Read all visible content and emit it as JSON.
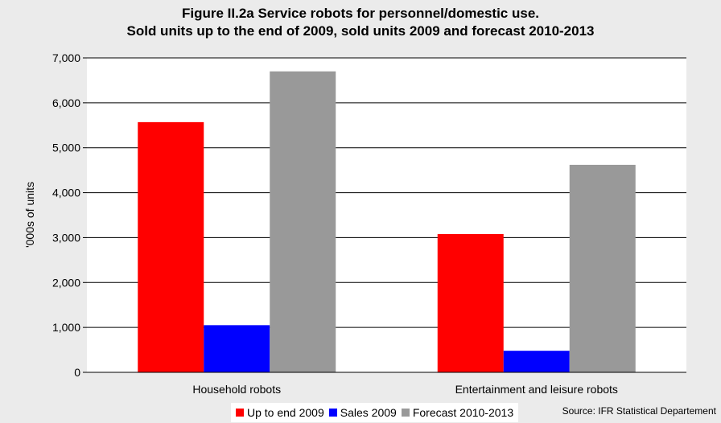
{
  "title_line1": "Figure II.2a  Service robots for personnel/domestic use.",
  "title_line2": "Sold units up to the end of 2009, sold units 2009 and forecast 2010-2013",
  "source": "Source: IFR Statistical Departement",
  "chart_data": {
    "type": "bar",
    "title": "Figure II.2a  Service robots for personnel/domestic use. Sold units up to the end of 2009, sold units 2009 and forecast 2010-2013",
    "ylabel": "'000s of units",
    "xlabel": "",
    "categories": [
      "Household robots",
      "Entertainment and leisure robots"
    ],
    "series": [
      {
        "name": "Up to end 2009",
        "color": "#ff0000",
        "values": [
          5570,
          3080
        ]
      },
      {
        "name": "Sales 2009",
        "color": "#0000ff",
        "values": [
          1050,
          480
        ]
      },
      {
        "name": "Forecast 2010-2013",
        "color": "#999999",
        "values": [
          6700,
          4620
        ]
      }
    ],
    "ylim": [
      0,
      7000
    ],
    "yticks": [
      0,
      1000,
      2000,
      3000,
      4000,
      5000,
      6000,
      7000
    ],
    "ytick_labels": [
      "0",
      "1,000",
      "2,000",
      "3,000",
      "4,000",
      "5,000",
      "6,000",
      "7,000"
    ],
    "grid": true,
    "legend_position": "bottom"
  }
}
